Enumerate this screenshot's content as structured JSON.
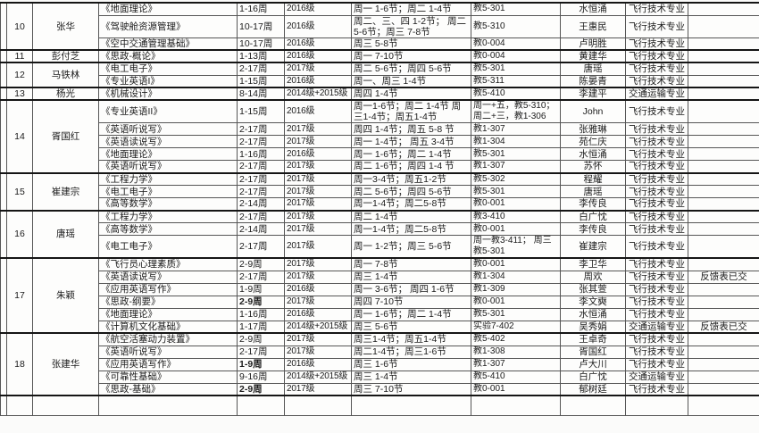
{
  "colors": {
    "page_background": "#fbfbfa",
    "cell_background": "#fdfdfc",
    "grid_border": "#565656",
    "group_border": "#151515",
    "text": "#1b1b1b"
  },
  "table": {
    "groups": [
      {
        "no": "10",
        "teacher": "张华",
        "courses": [
          {
            "title": "《地面理论》",
            "weeks": "1-16周",
            "weeks_bold": false,
            "grade": "2016级",
            "schedule": "周一 1-6节；周二 1-4节",
            "room": "教5-301",
            "co_teacher": "水恒涌",
            "major": "飞行技术专业",
            "remark": "",
            "tall": false
          },
          {
            "title": "《驾驶舱资源管理》",
            "weeks": "10-17周",
            "weeks_bold": false,
            "grade": "2016级",
            "schedule": "周二、三、四 1-2节； 周二 5-6节；周三 7-8节",
            "room": "教5-310",
            "co_teacher": "王惠民",
            "major": "飞行技术专业",
            "remark": "",
            "tall": true
          },
          {
            "title": "《空中交通管理基础》",
            "weeks": "10-17周",
            "weeks_bold": false,
            "grade": "2016级",
            "schedule": "周三 5-8节",
            "room": "教0-004",
            "co_teacher": "卢明胜",
            "major": "飞行技术专业",
            "remark": "",
            "tall": false
          }
        ]
      },
      {
        "no": "11",
        "teacher": "彭付芝",
        "courses": [
          {
            "title": "《思政-概论》",
            "weeks": "1-13周",
            "weeks_bold": false,
            "grade": "2016级",
            "schedule": "周一 7-10节",
            "room": "教0-004",
            "co_teacher": "黄建华",
            "major": "飞行技术专业",
            "remark": "",
            "tall": false
          }
        ]
      },
      {
        "no": "12",
        "teacher": "马铁林",
        "courses": [
          {
            "title": "《电工电子》",
            "weeks": "2-17周",
            "weeks_bold": false,
            "grade": "2017级",
            "schedule": "周二 5-6节；周四 5-6节",
            "room": "教5-301",
            "co_teacher": "唐瑶",
            "major": "飞行技术专业",
            "remark": "",
            "tall": false
          },
          {
            "title": "《专业英语I》",
            "weeks": "1-15周",
            "weeks_bold": false,
            "grade": "2016级",
            "schedule": "周一、周三 1-4节",
            "room": "教5-311",
            "co_teacher": "陈晏青",
            "major": "飞行技术专业",
            "remark": "",
            "tall": false
          }
        ]
      },
      {
        "no": "13",
        "teacher": "杨光",
        "courses": [
          {
            "title": "《机械设计》",
            "weeks": "8-14周",
            "weeks_bold": false,
            "grade": "2014级+2015级",
            "schedule": "周四 1-4节",
            "room": "教5-410",
            "co_teacher": "李建平",
            "major": "交通运输专业",
            "remark": "",
            "tall": false
          }
        ]
      },
      {
        "no": "14",
        "teacher": "胥国红",
        "courses": [
          {
            "title": "《专业英语II》",
            "weeks": "1-15周",
            "weeks_bold": false,
            "grade": "2016级",
            "schedule": "周一1-6节；周二 1-4节 周三1-4节；周五1-4节",
            "room": "周一+五，教5-310；周二+三，教1-306",
            "co_teacher": "John",
            "major": "飞行技术专业",
            "remark": "",
            "tall": true
          },
          {
            "title": "《英语听说写》",
            "weeks": "2-17周",
            "weeks_bold": false,
            "grade": "2017级",
            "schedule": "周四 1-4节；周五 5-8 节",
            "room": "教1-307",
            "co_teacher": "张雅琳",
            "major": "飞行技术专业",
            "remark": "",
            "tall": false
          },
          {
            "title": "《英语读说写》",
            "weeks": "2-17周",
            "weeks_bold": false,
            "grade": "2017级",
            "schedule": "周一 1-4节； 周五 3-4节",
            "room": "教1-304",
            "co_teacher": "苑仁庆",
            "major": "飞行技术专业",
            "remark": "",
            "tall": false
          },
          {
            "title": "《地面理论》",
            "weeks": "1-16周",
            "weeks_bold": false,
            "grade": "2016级",
            "schedule": "周一 1-6节；周二 1-4节",
            "room": "教5-301",
            "co_teacher": "水恒涌",
            "major": "飞行技术专业",
            "remark": "",
            "tall": false
          },
          {
            "title": "《英语听说写》",
            "weeks": "2-17周",
            "weeks_bold": false,
            "grade": "2017级",
            "schedule": "周二 1-6节；周四 1-4 节",
            "room": "教1-307",
            "co_teacher": "苏怀",
            "major": "飞行技术专业",
            "remark": "",
            "tall": false
          }
        ]
      },
      {
        "no": "15",
        "teacher": "崔建宗",
        "courses": [
          {
            "title": "《工程力学》",
            "weeks": "2-17周",
            "weeks_bold": false,
            "grade": "2017级",
            "schedule": "周一3-4节；周五1-2节",
            "room": "教5-302",
            "co_teacher": "程耀",
            "major": "飞行技术专业",
            "remark": "",
            "tall": false
          },
          {
            "title": "《电工电子》",
            "weeks": "2-17周",
            "weeks_bold": false,
            "grade": "2017级",
            "schedule": "周二 5-6节；周四 5-6节",
            "room": "教5-301",
            "co_teacher": "唐瑶",
            "major": "飞行技术专业",
            "remark": "",
            "tall": false
          },
          {
            "title": "《高等数学》",
            "weeks": "2-14周",
            "weeks_bold": false,
            "grade": "2017级",
            "schedule": "周一1-4节；周二5-8节",
            "room": "教0-001",
            "co_teacher": "李传良",
            "major": "飞行技术专业",
            "remark": "",
            "tall": false
          }
        ]
      },
      {
        "no": "16",
        "teacher": "唐瑶",
        "courses": [
          {
            "title": "《工程力学》",
            "weeks": "2-17周",
            "weeks_bold": false,
            "grade": "2017级",
            "schedule": "周二 1-4节",
            "room": "教3-410",
            "co_teacher": "白广忱",
            "major": "飞行技术专业",
            "remark": "",
            "tall": false
          },
          {
            "title": "《高等数学》",
            "weeks": "2-14周",
            "weeks_bold": false,
            "grade": "2017级",
            "schedule": "周一1-4节；周二5-8节",
            "room": "教0-001",
            "co_teacher": "李传良",
            "major": "飞行技术专业",
            "remark": "",
            "tall": false
          },
          {
            "title": "《电工电子》",
            "weeks": "2-17周",
            "weeks_bold": false,
            "grade": "2017级",
            "schedule": "周一 1-2节；周三 5-6节",
            "room": "周一教3-411； 周三教5-301",
            "co_teacher": "崔建宗",
            "major": "飞行技术专业",
            "remark": "",
            "tall": true
          }
        ]
      },
      {
        "no": "17",
        "teacher": "朱颖",
        "courses": [
          {
            "title": "《飞行员心理素质》",
            "weeks": "2-9周",
            "weeks_bold": false,
            "grade": "2017级",
            "schedule": "周一 7-8节",
            "room": "教0-001",
            "co_teacher": "李卫华",
            "major": "飞行技术专业",
            "remark": "",
            "tall": false
          },
          {
            "title": "《英语读说写》",
            "weeks": "2-17周",
            "weeks_bold": false,
            "grade": "2017级",
            "schedule": "周三 1-4节",
            "room": "教1-304",
            "co_teacher": "周欢",
            "major": "飞行技术专业",
            "remark": "反馈表已交",
            "tall": false
          },
          {
            "title": "《应用英语写作》",
            "weeks": "1-9周",
            "weeks_bold": false,
            "grade": "2016级",
            "schedule": "周一 3-6节； 周四 1-6节",
            "room": "教1-309",
            "co_teacher": "张其萱",
            "major": "飞行技术专业",
            "remark": "",
            "tall": false
          },
          {
            "title": "《思政-纲要》",
            "weeks": "2-9周",
            "weeks_bold": true,
            "grade": "2017级",
            "schedule": "周四 7-10节",
            "room": "教0-001",
            "co_teacher": "李文奭",
            "major": "飞行技术专业",
            "remark": "",
            "tall": false
          },
          {
            "title": "《地面理论》",
            "weeks": "1-16周",
            "weeks_bold": false,
            "grade": "2016级",
            "schedule": "周一 1-6节；周二 1-4节",
            "room": "教5-301",
            "co_teacher": "水恒涌",
            "major": "飞行技术专业",
            "remark": "",
            "tall": false
          },
          {
            "title": "《计算机文化基础》",
            "weeks": "1-17周",
            "weeks_bold": false,
            "grade": "2014级+2015级",
            "schedule": "周三 5-6节",
            "room": "实验7-402",
            "co_teacher": "吴秀娟",
            "major": "交通运输专业",
            "remark": "反馈表已交",
            "tall": false
          }
        ]
      },
      {
        "no": "18",
        "teacher": "张建华",
        "courses": [
          {
            "title": "《航空活塞动力装置》",
            "weeks": "2-9周",
            "weeks_bold": false,
            "grade": "2017级",
            "schedule": "周三1-4节；周五1-4节",
            "room": "教5-402",
            "co_teacher": "王卓奇",
            "major": "飞行技术专业",
            "remark": "",
            "tall": false
          },
          {
            "title": "《英语听说写》",
            "weeks": "2-17周",
            "weeks_bold": false,
            "grade": "2017级",
            "schedule": "周二1-4节；周三1-6节",
            "room": "教1-308",
            "co_teacher": "胥国红",
            "major": "飞行技术专业",
            "remark": "",
            "tall": false
          },
          {
            "title": "《应用英语写作》",
            "weeks": "1-9周",
            "weeks_bold": true,
            "grade": "2016级",
            "schedule": "周三 1-6节",
            "room": "教1-307",
            "co_teacher": "卢大川",
            "major": "飞行技术专业",
            "remark": "",
            "tall": false
          },
          {
            "title": "《可靠性基础》",
            "weeks": "9-16周",
            "weeks_bold": false,
            "grade": "2014级+2015级",
            "schedule": "周三 1-4节",
            "room": "教5-410",
            "co_teacher": "白广忱",
            "major": "交通运输专业",
            "remark": "",
            "tall": false
          },
          {
            "title": "《思政-基础》",
            "weeks": "2-9周",
            "weeks_bold": true,
            "grade": "2017级",
            "schedule": "周三 7-10节",
            "room": "教0-001",
            "co_teacher": "郁树廷",
            "major": "飞行技术专业",
            "remark": "",
            "tall": false
          }
        ]
      }
    ]
  }
}
